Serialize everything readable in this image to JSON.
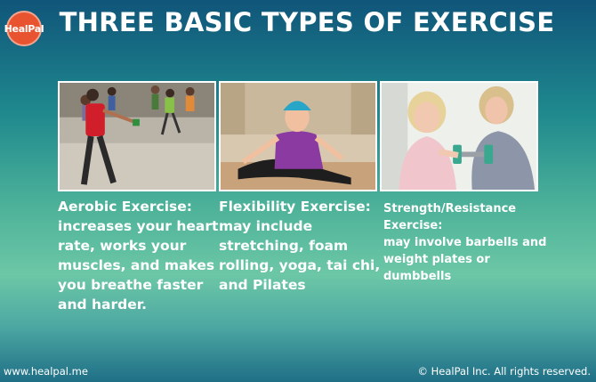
{
  "logo": {
    "text": "HealPal",
    "color": "#e8542f"
  },
  "header": {
    "title": "THREE BASIC TYPES OF EXERCISE"
  },
  "exercises": [
    {
      "image": "aerobic-class-photo",
      "heading": "Aerobic Exercise:",
      "body": "increases your heart rate, works your muscles, and makes you breathe faster and harder."
    },
    {
      "image": "flexibility-stretch-photo",
      "heading": "Flexibility Exercise:",
      "body": "may include stretching, foam rolling, yoga, tai chi, and Pilates"
    },
    {
      "image": "strength-dumbbell-photo",
      "heading": "Strength/Resistance Exercise:",
      "body": "may involve barbells and weight plates or dumbbells"
    }
  ],
  "footer": {
    "website": "www.healpal.me",
    "copyright": "© HealPal Inc. All rights reserved."
  }
}
